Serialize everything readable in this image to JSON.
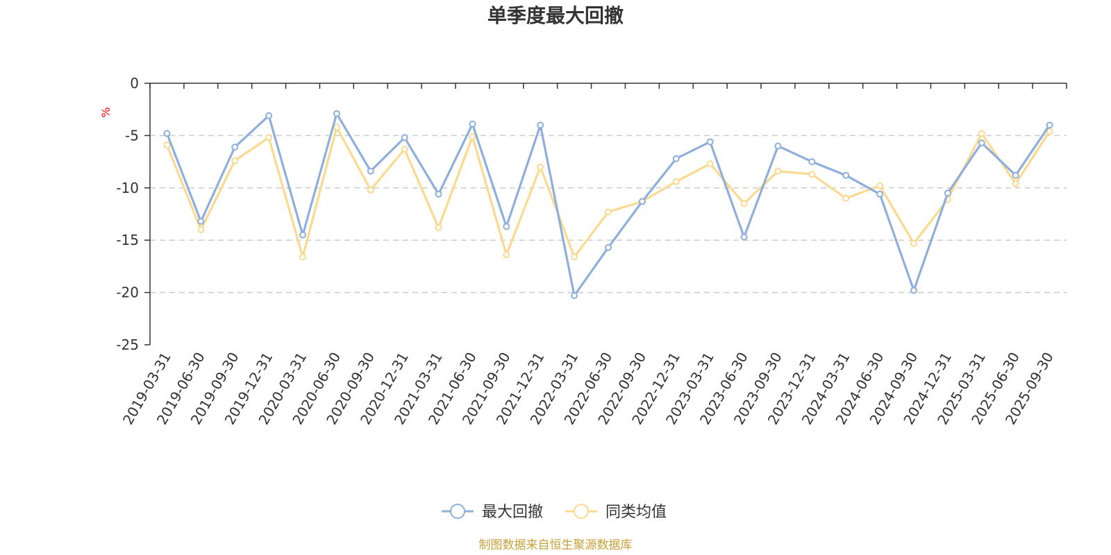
{
  "chart_data": {
    "type": "line",
    "title": "单季度最大回撤",
    "ylabel": "%",
    "ylim": [
      -25,
      0
    ],
    "yticks": [
      0,
      -5,
      -10,
      -15,
      -20,
      -25
    ],
    "grid": true,
    "legend_position": "bottom-center",
    "categories": [
      "2019-03-31",
      "2019-06-30",
      "2019-09-30",
      "2019-12-31",
      "2020-03-31",
      "2020-06-30",
      "2020-09-30",
      "2020-12-31",
      "2021-03-31",
      "2021-06-30",
      "2021-09-30",
      "2021-12-31",
      "2022-03-31",
      "2022-06-30",
      "2022-09-30",
      "2022-12-31",
      "2023-03-31",
      "2023-06-30",
      "2023-09-30",
      "2023-12-31",
      "2024-03-31",
      "2024-06-30",
      "2024-09-30",
      "2024-12-31",
      "2025-03-31",
      "2025-06-30",
      "2025-09-30"
    ],
    "series": [
      {
        "name": "最大回撤",
        "color": "#8eaedb",
        "values": [
          -4.8,
          -13.2,
          -6.1,
          -3.1,
          -14.5,
          -2.9,
          -8.4,
          -5.2,
          -10.6,
          -3.9,
          -13.7,
          -4.0,
          -20.3,
          -15.7,
          -11.3,
          -7.2,
          -5.6,
          -14.7,
          -6.0,
          -7.5,
          -8.8,
          -10.6,
          -19.8,
          -10.5,
          -5.7,
          -8.8,
          -4.0
        ]
      },
      {
        "name": "同类均值",
        "color": "#fbd98f",
        "values": [
          -5.9,
          -14.0,
          -7.4,
          -5.2,
          -16.6,
          -4.2,
          -10.2,
          -6.3,
          -13.8,
          -5.1,
          -16.4,
          -8.0,
          -16.6,
          -12.3,
          -11.3,
          -9.4,
          -7.7,
          -11.5,
          -8.4,
          -8.7,
          -11.0,
          -9.8,
          -15.3,
          -11.1,
          -4.8,
          -9.6,
          -4.6
        ]
      }
    ],
    "source": "制图数据来自恒生聚源数据库"
  },
  "colors": {
    "unit": "#ff0000",
    "source": "#c9a13a",
    "axis": "#333333",
    "grid": "#cccccc"
  }
}
